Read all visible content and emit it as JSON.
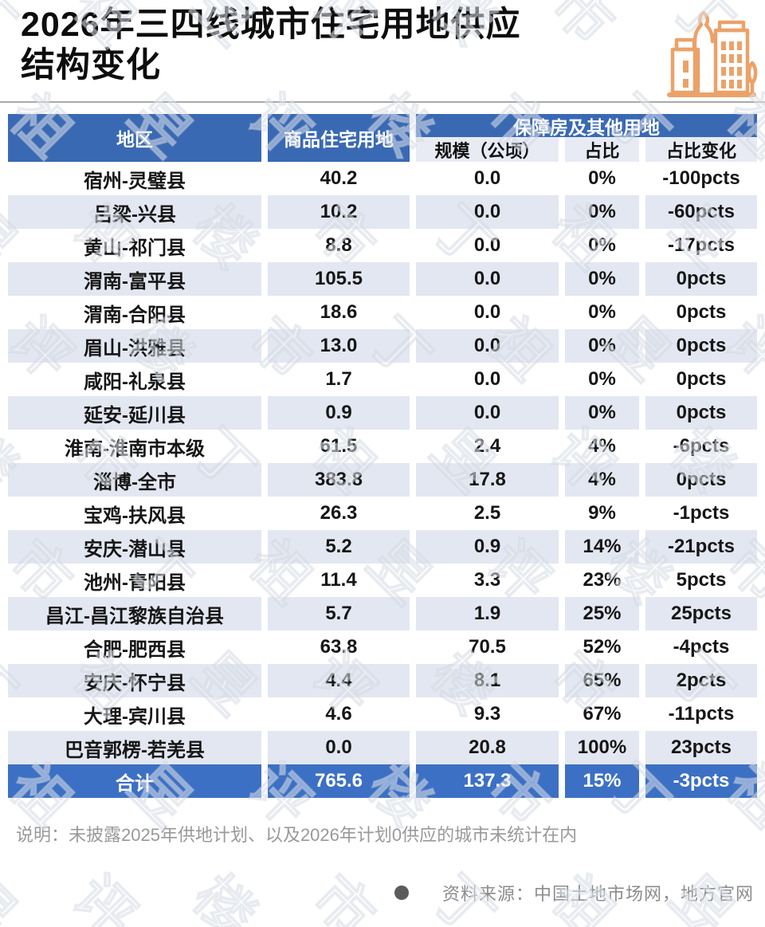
{
  "title": {
    "line1": "2026年三四线城市住宅用地供应",
    "line2": "结构变化"
  },
  "chart_data": {
    "type": "table",
    "title": "2026年三四线城市住宅用地供应结构变化",
    "header": {
      "region": "地区",
      "commercial": "商品住宅用地",
      "group": "保障房及其他用地",
      "sub": {
        "scale": "规模（公顷）",
        "share": "占比",
        "change": "占比变化"
      }
    },
    "rows": [
      {
        "region": "宿州-灵璧县",
        "commercial": "40.2",
        "scale": "0.0",
        "share": "0%",
        "change": "-100pcts"
      },
      {
        "region": "吕梁-兴县",
        "commercial": "10.2",
        "scale": "0.0",
        "share": "0%",
        "change": "-60pcts"
      },
      {
        "region": "黄山-祁门县",
        "commercial": "8.8",
        "scale": "0.0",
        "share": "0%",
        "change": "-17pcts"
      },
      {
        "region": "渭南-富平县",
        "commercial": "105.5",
        "scale": "0.0",
        "share": "0%",
        "change": "0pcts"
      },
      {
        "region": "渭南-合阳县",
        "commercial": "18.6",
        "scale": "0.0",
        "share": "0%",
        "change": "0pcts"
      },
      {
        "region": "眉山-洪雅县",
        "commercial": "13.0",
        "scale": "0.0",
        "share": "0%",
        "change": "0pcts"
      },
      {
        "region": "咸阳-礼泉县",
        "commercial": "1.7",
        "scale": "0.0",
        "share": "0%",
        "change": "0pcts"
      },
      {
        "region": "延安-延川县",
        "commercial": "0.9",
        "scale": "0.0",
        "share": "0%",
        "change": "0pcts"
      },
      {
        "region": "淮南-淮南市本级",
        "commercial": "61.5",
        "scale": "2.4",
        "share": "4%",
        "change": "-6pcts"
      },
      {
        "region": "淄博-全市",
        "commercial": "383.8",
        "scale": "17.8",
        "share": "4%",
        "change": "0pcts"
      },
      {
        "region": "宝鸡-扶风县",
        "commercial": "26.3",
        "scale": "2.5",
        "share": "9%",
        "change": "-1pcts"
      },
      {
        "region": "安庆-潜山县",
        "commercial": "5.2",
        "scale": "0.9",
        "share": "14%",
        "change": "-21pcts"
      },
      {
        "region": "池州-青阳县",
        "commercial": "11.4",
        "scale": "3.3",
        "share": "23%",
        "change": "5pcts"
      },
      {
        "region": "昌江-昌江黎族自治县",
        "commercial": "5.7",
        "scale": "1.9",
        "share": "25%",
        "change": "25pcts"
      },
      {
        "region": "合肥-肥西县",
        "commercial": "63.8",
        "scale": "70.5",
        "share": "52%",
        "change": "-4pcts"
      },
      {
        "region": "安庆-怀宁县",
        "commercial": "4.4",
        "scale": "8.1",
        "share": "65%",
        "change": "2pcts"
      },
      {
        "region": "大理-宾川县",
        "commercial": "4.6",
        "scale": "9.3",
        "share": "67%",
        "change": "-11pcts"
      },
      {
        "region": "巴音郭楞-若羌县",
        "commercial": "0.0",
        "scale": "20.8",
        "share": "100%",
        "change": "23pcts"
      }
    ],
    "total": {
      "region": "合计",
      "commercial": "765.6",
      "scale": "137.3",
      "share": "15%",
      "change": "-3pcts"
    }
  },
  "footnote": "说明：未披露2025年供地计划、以及2026年计划0供应的城市未统计在内",
  "source": {
    "text": "资料来源：中国土地市场网，地方官网"
  },
  "watermark": {
    "text": "丁祖昱评楼市"
  },
  "colors": {
    "header_blue": "#3a69b4",
    "total_blue": "#3c70c4",
    "stripe": "#e3e7f1",
    "subheader": "#e8ebf3",
    "accent_orange": "#eba269"
  }
}
